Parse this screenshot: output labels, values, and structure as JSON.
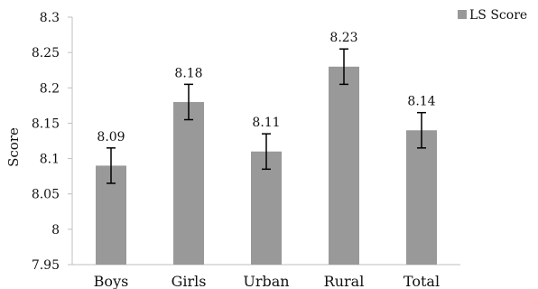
{
  "chart_data": {
    "type": "bar",
    "categories": [
      "Boys",
      "Girls",
      "Urban",
      "Rural",
      "Total"
    ],
    "series": [
      {
        "name": "LS Score",
        "values": [
          8.09,
          8.18,
          8.11,
          8.23,
          8.14
        ],
        "error": [
          0.025,
          0.025,
          0.025,
          0.025,
          0.025
        ],
        "color": "#999999"
      }
    ],
    "data_labels": [
      "8.09",
      "8.18",
      "8.11",
      "8.23",
      "8.14"
    ],
    "ylabel": "Score",
    "xlabel": "",
    "ylim": [
      7.95,
      8.3
    ],
    "yticks": [
      7.95,
      8,
      8.05,
      8.1,
      8.15,
      8.2,
      8.25,
      8.3
    ],
    "ytick_labels": [
      "7.95",
      "8",
      "8.05",
      "8.1",
      "8.15",
      "8.2",
      "8.25",
      "8.3"
    ],
    "legend": {
      "label": "LS Score",
      "position": "top-right"
    },
    "grid": false,
    "axis_color": "#bfbfbf"
  }
}
